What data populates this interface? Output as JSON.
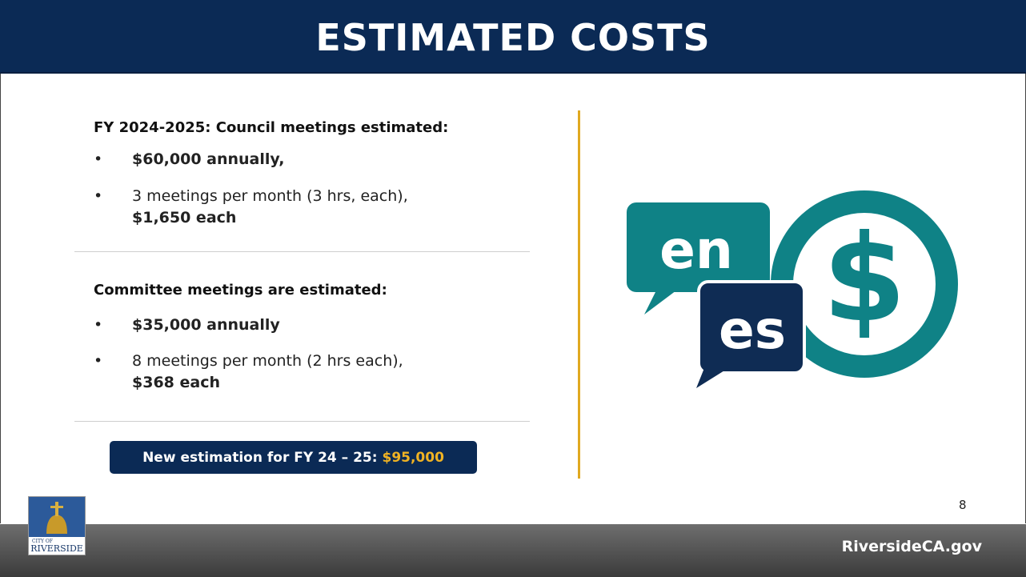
{
  "header": {
    "title": "ESTIMATED COSTS"
  },
  "sections": [
    {
      "heading": "FY 2024-2025: Council meetings estimated:",
      "bullets": [
        {
          "strong": "$60,000 annually,"
        },
        {
          "text": "3 meetings per month (3 hrs, each),",
          "strong": "$1,650 each"
        }
      ]
    },
    {
      "heading": "Committee meetings are estimated:",
      "bullets": [
        {
          "strong": "$35,000 annually"
        },
        {
          "text": "8 meetings per month (2 hrs each),",
          "strong": "$368 each"
        }
      ]
    }
  ],
  "callout": {
    "text": "New estimation for FY 24 – 25:",
    "amount": "$95,000"
  },
  "icon": {
    "labels": [
      "en",
      "es",
      "$"
    ]
  },
  "page_number": "8",
  "footer": {
    "logo": [
      "CITY OF",
      "RIVERSIDE"
    ],
    "website": "RiversideCA.gov"
  }
}
